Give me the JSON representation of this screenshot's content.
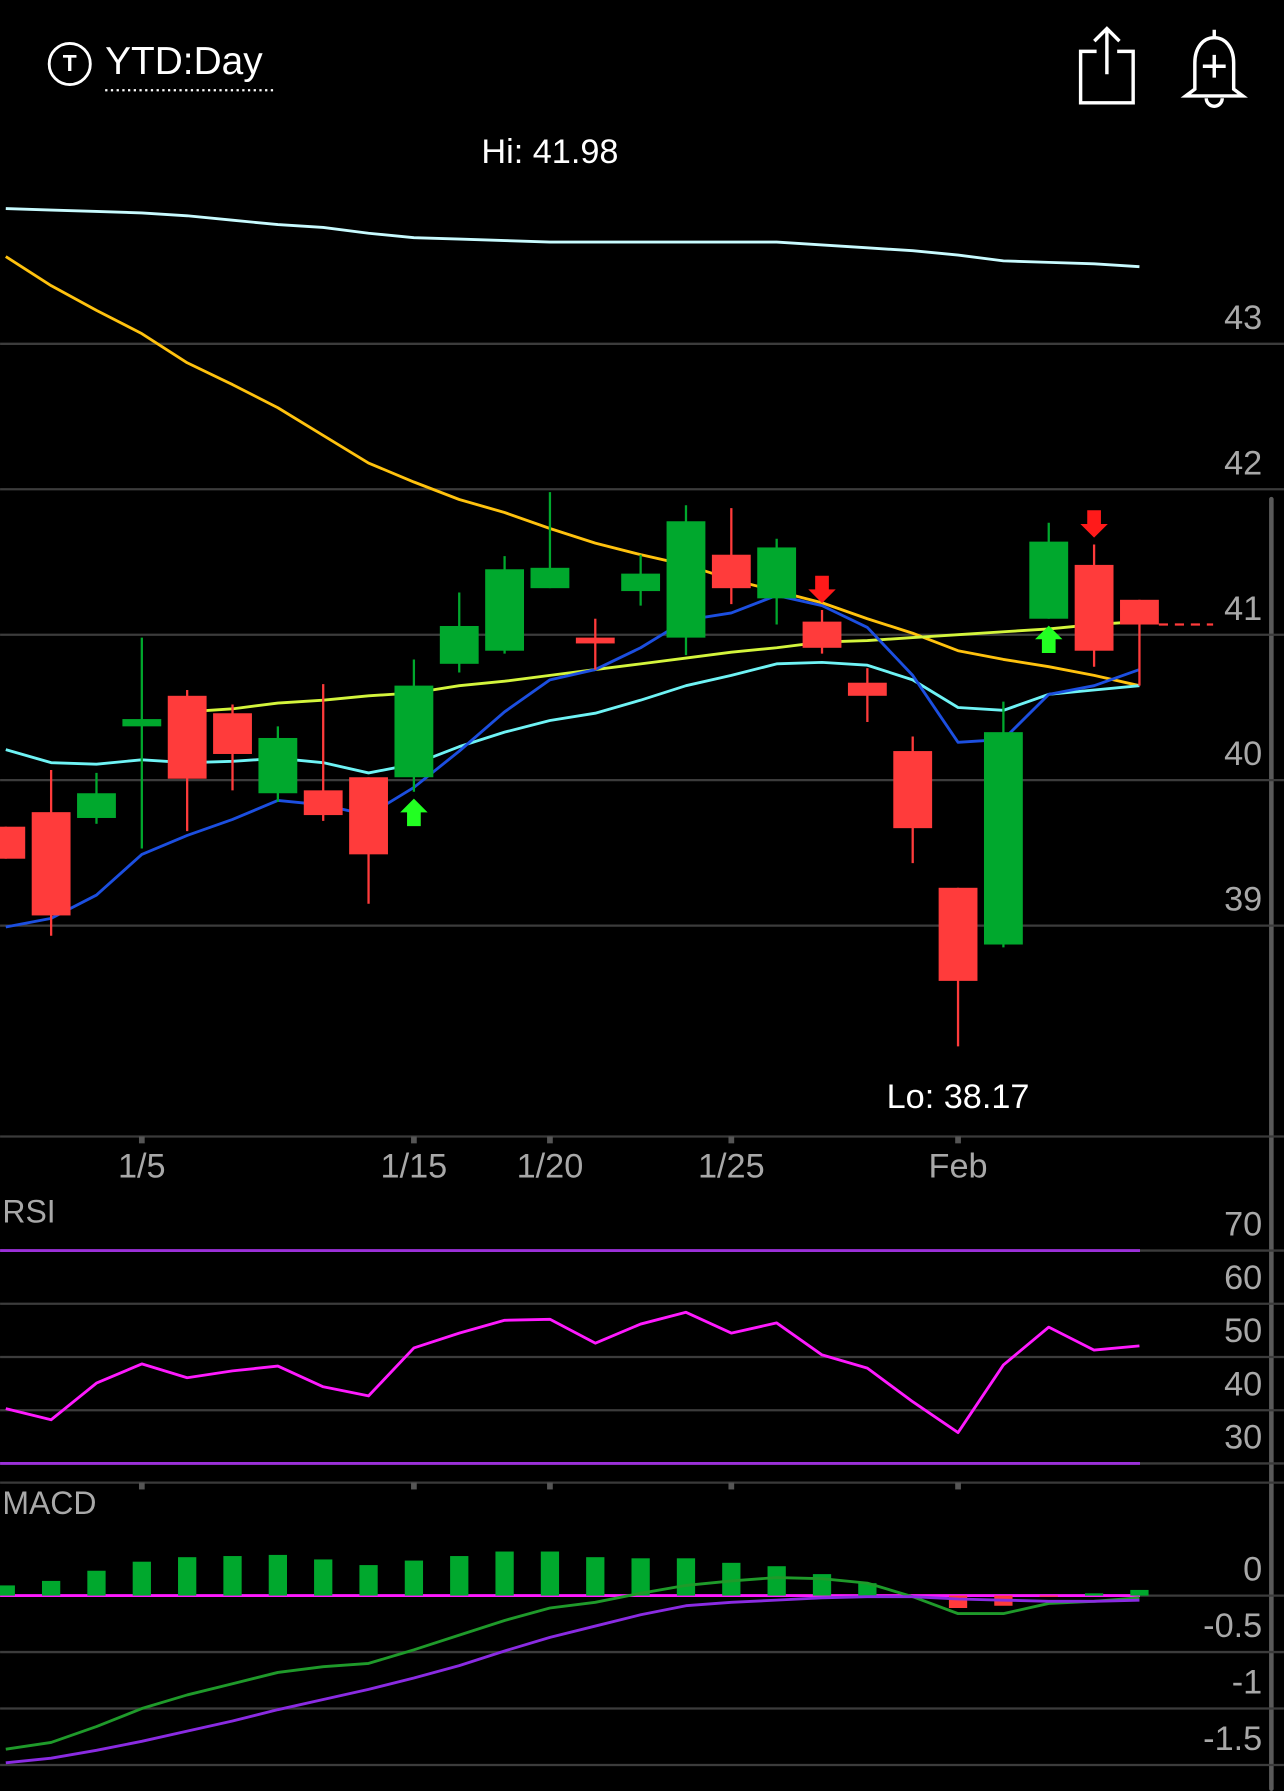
{
  "header": {
    "icon": "T",
    "title": "YTD:Day"
  },
  "chart_data": [
    {
      "type": "candlestick",
      "categories": [
        null,
        null,
        null,
        "1/5",
        null,
        null,
        null,
        null,
        null,
        "1/15",
        null,
        null,
        "1/20",
        null,
        null,
        null,
        "1/25",
        null,
        null,
        null,
        null,
        "Feb",
        null,
        null,
        null,
        null
      ],
      "open": [
        39.68,
        39.78,
        39.74,
        40.37,
        40.58,
        40.46,
        39.91,
        39.93,
        40.02,
        40.02,
        40.8,
        40.89,
        41.32,
        40.98,
        41.3,
        40.98,
        41.55,
        41.25,
        41.09,
        40.67,
        40.2,
        39.26,
        38.87,
        41.11,
        41.48,
        41.24
      ],
      "high": [
        39.68,
        40.07,
        40.05,
        40.98,
        40.62,
        40.52,
        40.37,
        40.66,
        40.02,
        40.83,
        41.29,
        41.54,
        41.98,
        41.11,
        41.55,
        41.89,
        41.87,
        41.66,
        41.17,
        40.77,
        40.3,
        39.26,
        40.54,
        41.77,
        41.62,
        41.24
      ],
      "low": [
        39.46,
        38.93,
        39.7,
        39.53,
        39.65,
        39.93,
        39.85,
        39.72,
        39.15,
        39.92,
        40.74,
        40.87,
        41.32,
        40.76,
        41.2,
        40.86,
        41.21,
        41.07,
        40.87,
        40.4,
        39.43,
        38.17,
        38.85,
        41.11,
        40.78,
        40.65
      ],
      "close": [
        39.46,
        39.07,
        39.91,
        40.42,
        40.01,
        40.18,
        40.29,
        39.76,
        39.49,
        40.65,
        41.06,
        41.45,
        41.46,
        40.94,
        41.42,
        41.78,
        41.32,
        41.6,
        40.91,
        40.58,
        39.67,
        38.62,
        40.33,
        41.64,
        40.89,
        41.07
      ],
      "up_color": "#00a82d",
      "down_color": "#ff3b3b",
      "series": [
        {
          "color": "#c8fbff",
          "values": [
            43.93,
            43.92,
            43.91,
            43.9,
            43.88,
            43.85,
            43.82,
            43.8,
            43.76,
            43.73,
            43.72,
            43.71,
            43.7,
            43.7,
            43.7,
            43.7,
            43.7,
            43.7,
            43.68,
            43.66,
            43.64,
            43.61,
            43.57,
            43.56,
            43.55,
            43.53
          ]
        },
        {
          "color": "#ffc20e",
          "values": [
            43.6,
            43.4,
            43.23,
            43.07,
            42.87,
            42.72,
            42.56,
            42.37,
            42.18,
            42.05,
            41.93,
            41.84,
            41.73,
            41.63,
            41.55,
            41.48,
            41.38,
            41.3,
            41.22,
            41.11,
            41.01,
            40.89,
            40.83,
            40.78,
            40.72,
            40.65
          ]
        },
        {
          "color": "#d4f53c",
          "values": [
            null,
            null,
            null,
            null,
            40.47,
            40.49,
            40.53,
            40.55,
            40.58,
            40.6,
            40.65,
            40.68,
            40.72,
            40.76,
            40.8,
            40.84,
            40.88,
            40.91,
            40.95,
            40.96,
            40.98,
            41.0,
            41.02,
            41.04,
            41.07,
            41.09
          ]
        },
        {
          "color": "#6ff3f5",
          "values": [
            40.21,
            40.12,
            40.11,
            40.14,
            40.12,
            40.13,
            40.15,
            40.12,
            40.05,
            40.11,
            40.23,
            40.33,
            40.41,
            40.46,
            40.55,
            40.65,
            40.72,
            40.8,
            40.81,
            40.79,
            40.69,
            40.5,
            40.48,
            40.59,
            40.62,
            40.65
          ]
        },
        {
          "color": "#1c4fe0",
          "values": [
            38.99,
            39.05,
            39.21,
            39.49,
            39.62,
            39.73,
            39.86,
            39.83,
            39.76,
            39.95,
            40.2,
            40.47,
            40.69,
            40.76,
            40.91,
            41.1,
            41.15,
            41.27,
            41.2,
            41.05,
            40.72,
            40.26,
            40.28,
            40.59,
            40.65,
            40.76
          ]
        }
      ],
      "buy_signals": [
        9,
        23
      ],
      "sell_signals": [
        18,
        24
      ],
      "buy_color": "#22ff22",
      "sell_color": "#ff1a1a",
      "annotations": [
        "Hi: 41.98",
        "Lo: 38.17"
      ],
      "ylim": [
        37.55,
        44.5
      ],
      "yticks": [
        39,
        40,
        41,
        42,
        43
      ],
      "grid": true
    },
    {
      "type": "line",
      "title": "RSI",
      "series": [
        {
          "color": "#ff1aff",
          "values": [
            40.3,
            38.2,
            45.1,
            48.7,
            46.1,
            47.4,
            48.3,
            44.4,
            42.7,
            51.7,
            54.5,
            56.9,
            57.1,
            52.6,
            56.2,
            58.4,
            54.5,
            56.4,
            50.4,
            47.9,
            41.6,
            35.8,
            48.5,
            55.6,
            51.3,
            52.1
          ]
        }
      ],
      "reference_lines": [
        {
          "value": 70,
          "color": "#9b30d9"
        },
        {
          "value": 30,
          "color": "#9b30d9"
        }
      ],
      "ylim": [
        26.4,
        80.7
      ],
      "yticks": [
        30,
        40,
        50,
        60,
        70
      ],
      "grid": true
    },
    {
      "type": "macd",
      "title": "MACD",
      "histogram": [
        0.09,
        0.13,
        0.22,
        0.3,
        0.34,
        0.35,
        0.36,
        0.32,
        0.27,
        0.31,
        0.35,
        0.39,
        0.39,
        0.34,
        0.33,
        0.33,
        0.29,
        0.26,
        0.19,
        0.11,
        0.0,
        -0.11,
        -0.09,
        -0.01,
        0.02,
        0.05
      ],
      "up_color": "#00a82d",
      "down_color": "#ff3b3b",
      "series": [
        {
          "color": "#1f9a2a",
          "values": [
            -1.36,
            -1.3,
            -1.16,
            -1.0,
            -0.88,
            -0.78,
            -0.68,
            -0.63,
            -0.6,
            -0.48,
            -0.35,
            -0.22,
            -0.11,
            -0.06,
            0.02,
            0.09,
            0.13,
            0.16,
            0.15,
            0.11,
            -0.01,
            -0.16,
            -0.16,
            -0.07,
            -0.05,
            -0.02
          ]
        },
        {
          "color": "#8a2be2",
          "values": [
            -1.48,
            -1.44,
            -1.37,
            -1.29,
            -1.2,
            -1.11,
            -1.01,
            -0.92,
            -0.83,
            -0.73,
            -0.62,
            -0.49,
            -0.37,
            -0.27,
            -0.17,
            -0.09,
            -0.06,
            -0.04,
            -0.02,
            -0.01,
            -0.01,
            -0.03,
            -0.04,
            -0.05,
            -0.05,
            -0.04
          ]
        }
      ],
      "reference_lines": [
        {
          "value": 0,
          "color": "#ff1aff"
        }
      ],
      "ylim": [
        -1.73,
        0.98
      ],
      "yticks": [
        -1.5,
        -1,
        -0.5,
        0
      ],
      "grid": true
    }
  ]
}
